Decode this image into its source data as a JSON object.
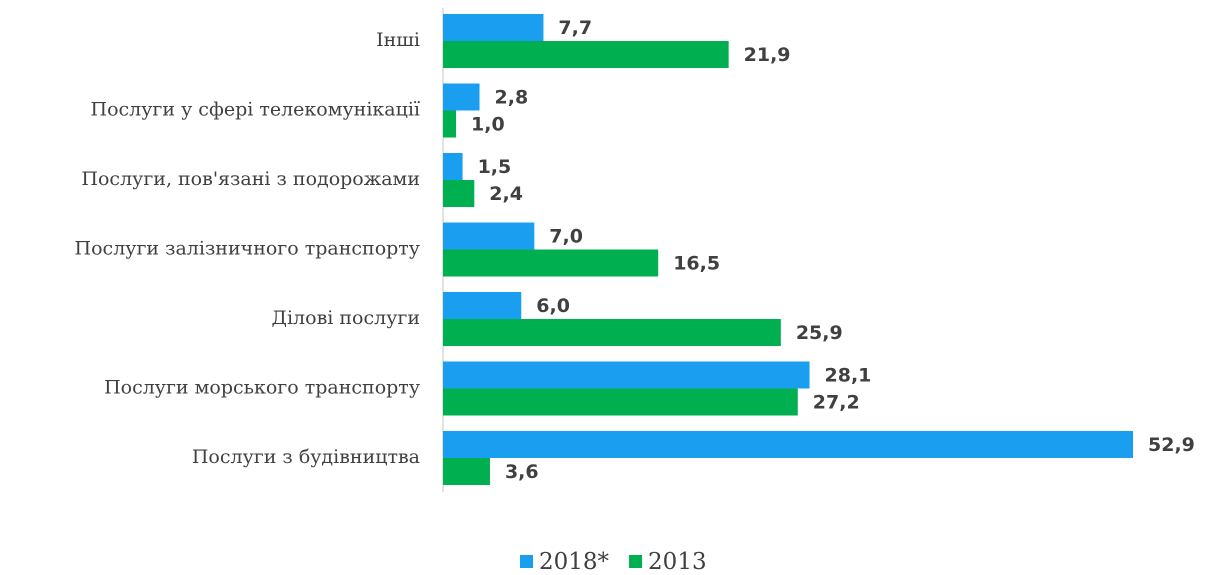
{
  "chart_data": {
    "type": "bar",
    "orientation": "horizontal",
    "categories": [
      "Інші",
      "Послуги у сфері телекомунікації",
      "Послуги, пов'язані з подорожами",
      "Послуги залізничного транспорту",
      "Ділові послуги",
      "Послуги морського транспорту",
      "Послуги з будівництва"
    ],
    "series": [
      {
        "name": "2018*",
        "color": "#1a9ff0",
        "values": [
          7.7,
          2.8,
          1.5,
          7.0,
          6.0,
          28.1,
          52.9
        ],
        "value_labels": [
          "7,7",
          "2,8",
          "1,5",
          "7,0",
          "6,0",
          "28,1",
          "52,9"
        ]
      },
      {
        "name": "2013",
        "color": "#00b050",
        "values": [
          21.9,
          1.0,
          2.4,
          16.5,
          25.9,
          27.2,
          3.6
        ],
        "value_labels": [
          "21,9",
          "1,0",
          "2,4",
          "16,5",
          "25,9",
          "27,2",
          "3,6"
        ]
      }
    ],
    "legend": "bottom"
  }
}
